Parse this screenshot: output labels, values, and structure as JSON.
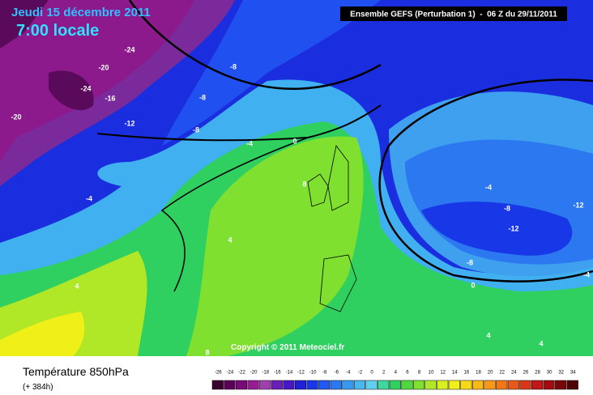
{
  "header": {
    "date": "Jeudi 15 décembre 2011",
    "time": "7:00 locale",
    "model": "Ensemble GEFS (Perturbation 1)  -  06 Z du 29/11/2011"
  },
  "copyright": "Copyright © 2011 Meteociel.fr",
  "legend": {
    "title": "Température 850hPa",
    "subtitle": "(+ 384h)",
    "scale": [
      {
        "value": -26,
        "color": "#3a0030"
      },
      {
        "value": -24,
        "color": "#5c0058"
      },
      {
        "value": -22,
        "color": "#7a0a78"
      },
      {
        "value": -20,
        "color": "#961c96"
      },
      {
        "value": -18,
        "color": "#a040b0"
      },
      {
        "value": -16,
        "color": "#6a20b8"
      },
      {
        "value": -14,
        "color": "#4818c8"
      },
      {
        "value": -12,
        "color": "#2020d8"
      },
      {
        "value": -10,
        "color": "#1838e8"
      },
      {
        "value": -8,
        "color": "#2058f0"
      },
      {
        "value": -6,
        "color": "#2c78f0"
      },
      {
        "value": -4,
        "color": "#3898f0"
      },
      {
        "value": -2,
        "color": "#48b8f0"
      },
      {
        "value": 0,
        "color": "#60d0f0"
      },
      {
        "value": 2,
        "color": "#40d8a0"
      },
      {
        "value": 4,
        "color": "#30d060"
      },
      {
        "value": 6,
        "color": "#50d840"
      },
      {
        "value": 8,
        "color": "#80e030"
      },
      {
        "value": 10,
        "color": "#b0e828"
      },
      {
        "value": 12,
        "color": "#d8f020"
      },
      {
        "value": 14,
        "color": "#f0f018"
      },
      {
        "value": 16,
        "color": "#f8d818"
      },
      {
        "value": 18,
        "color": "#f8b818"
      },
      {
        "value": 20,
        "color": "#f89818"
      },
      {
        "value": 22,
        "color": "#f07818"
      },
      {
        "value": 24,
        "color": "#e85818"
      },
      {
        "value": 26,
        "color": "#d83818"
      },
      {
        "value": 28,
        "color": "#c01818"
      },
      {
        "value": 30,
        "color": "#a00c10"
      },
      {
        "value": 32,
        "color": "#780808"
      },
      {
        "value": 34,
        "color": "#500404"
      }
    ]
  },
  "contour_labels": [
    -24,
    -20,
    -24,
    -16,
    -20,
    -12,
    -8,
    -8,
    -8,
    -4,
    0,
    -4,
    4,
    4,
    8,
    0,
    -4,
    -8,
    -12,
    -12,
    -8,
    -4,
    4,
    4,
    8
  ]
}
